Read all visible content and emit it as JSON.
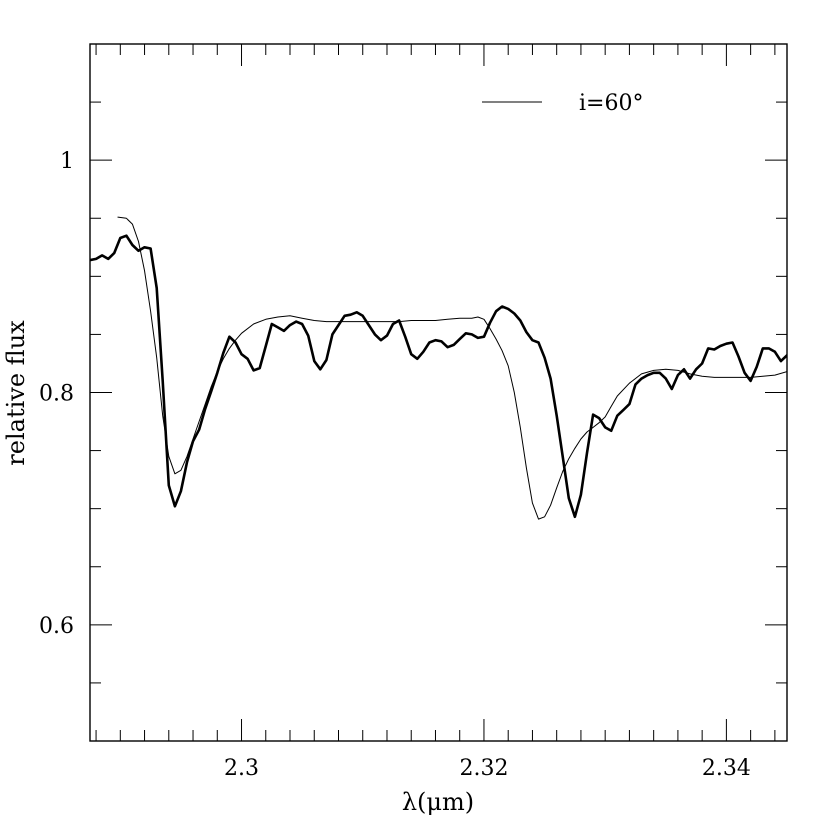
{
  "chart_data": {
    "type": "line",
    "title": "",
    "xlabel": "λ(μm)",
    "ylabel": "relative flux",
    "xlim": [
      2.2875,
      2.345
    ],
    "ylim": [
      0.5,
      1.1
    ],
    "x_ticks": [
      2.3,
      2.32,
      2.34
    ],
    "x_tick_labels": [
      "2.3",
      "2.32",
      "2.34"
    ],
    "x_minor_step": 0.002,
    "y_ticks": [
      0.6,
      0.8,
      1.0
    ],
    "y_tick_labels": [
      "0.6",
      "0.8",
      "1"
    ],
    "y_minor_step": 0.05,
    "grid": false,
    "legend": {
      "position": "top-right",
      "entries": [
        "i=60°"
      ]
    },
    "series": [
      {
        "style": "thick",
        "x": [
          2.2875,
          2.288,
          2.2885,
          2.289,
          2.2895,
          2.29,
          2.2905,
          2.291,
          2.2915,
          2.292,
          2.2925,
          2.293,
          2.2935,
          2.294,
          2.2945,
          2.295,
          2.2955,
          2.296,
          2.2965,
          2.297,
          2.2975,
          2.298,
          2.2985,
          2.299,
          2.2995,
          2.3,
          2.3005,
          2.301,
          2.3015,
          2.302,
          2.3025,
          2.303,
          2.3035,
          2.304,
          2.3045,
          2.305,
          2.3055,
          2.306,
          2.3065,
          2.307,
          2.3075,
          2.308,
          2.3085,
          2.309,
          2.3095,
          2.31,
          2.3105,
          2.311,
          2.3115,
          2.312,
          2.3125,
          2.313,
          2.3135,
          2.314,
          2.3145,
          2.315,
          2.3155,
          2.316,
          2.3165,
          2.317,
          2.3175,
          2.318,
          2.3185,
          2.319,
          2.3195,
          2.32,
          2.3205,
          2.321,
          2.3215,
          2.322,
          2.3225,
          2.323,
          2.3235,
          2.324,
          2.3245,
          2.325,
          2.3255,
          2.326,
          2.3265,
          2.327,
          2.3275,
          2.328,
          2.3285,
          2.329,
          2.3295,
          2.33,
          2.3305,
          2.331,
          2.3315,
          2.332,
          2.3325,
          2.333,
          2.3335,
          2.334,
          2.3345,
          2.335,
          2.3355,
          2.336,
          2.3365,
          2.337,
          2.3375,
          2.338,
          2.3385,
          2.339,
          2.3395,
          2.34,
          2.3405,
          2.341,
          2.3415,
          2.342,
          2.3425,
          2.343,
          2.3435,
          2.344,
          2.3445,
          2.345
        ],
        "y": [
          0.914,
          0.915,
          0.918,
          0.915,
          0.92,
          0.933,
          0.935,
          0.927,
          0.922,
          0.925,
          0.924,
          0.89,
          0.81,
          0.72,
          0.702,
          0.715,
          0.74,
          0.758,
          0.768,
          0.786,
          0.801,
          0.817,
          0.834,
          0.848,
          0.843,
          0.833,
          0.829,
          0.819,
          0.821,
          0.84,
          0.859,
          0.856,
          0.853,
          0.858,
          0.861,
          0.859,
          0.849,
          0.827,
          0.82,
          0.828,
          0.85,
          0.858,
          0.866,
          0.867,
          0.869,
          0.866,
          0.858,
          0.85,
          0.845,
          0.849,
          0.859,
          0.862,
          0.848,
          0.833,
          0.829,
          0.835,
          0.843,
          0.845,
          0.844,
          0.839,
          0.841,
          0.846,
          0.851,
          0.85,
          0.847,
          0.848,
          0.86,
          0.87,
          0.874,
          0.872,
          0.868,
          0.862,
          0.852,
          0.845,
          0.843,
          0.83,
          0.812,
          0.78,
          0.745,
          0.709,
          0.693,
          0.712,
          0.748,
          0.781,
          0.778,
          0.77,
          0.767,
          0.78,
          0.785,
          0.79,
          0.807,
          0.812,
          0.815,
          0.817,
          0.817,
          0.812,
          0.803,
          0.815,
          0.82,
          0.812,
          0.82,
          0.825,
          0.838,
          0.837,
          0.84,
          0.842,
          0.843,
          0.831,
          0.817,
          0.81,
          0.822,
          0.838,
          0.838,
          0.835,
          0.827,
          0.832
        ]
      },
      {
        "style": "thin",
        "name": "i=60°",
        "x": [
          2.2898,
          2.2905,
          2.291,
          2.2915,
          2.292,
          2.2925,
          2.293,
          2.2935,
          2.294,
          2.2945,
          2.295,
          2.2955,
          2.296,
          2.2965,
          2.297,
          2.2975,
          2.298,
          2.2985,
          2.299,
          2.2995,
          2.3,
          2.301,
          2.302,
          2.303,
          2.304,
          2.305,
          2.306,
          2.307,
          2.308,
          2.309,
          2.31,
          2.311,
          2.312,
          2.313,
          2.314,
          2.315,
          2.316,
          2.317,
          2.318,
          2.319,
          2.3195,
          2.32,
          2.3205,
          2.321,
          2.3215,
          2.322,
          2.3225,
          2.323,
          2.3235,
          2.324,
          2.3245,
          2.325,
          2.3255,
          2.326,
          2.3265,
          2.327,
          2.3275,
          2.328,
          2.3285,
          2.329,
          2.3295,
          2.33,
          2.3305,
          2.331,
          2.332,
          2.333,
          2.334,
          2.335,
          2.336,
          2.337,
          2.338,
          2.339,
          2.34,
          2.341,
          2.342,
          2.343,
          2.344,
          2.345
        ],
        "y": [
          0.951,
          0.95,
          0.945,
          0.93,
          0.905,
          0.87,
          0.83,
          0.78,
          0.745,
          0.73,
          0.733,
          0.745,
          0.76,
          0.775,
          0.79,
          0.805,
          0.818,
          0.829,
          0.838,
          0.845,
          0.851,
          0.859,
          0.863,
          0.865,
          0.866,
          0.864,
          0.862,
          0.861,
          0.861,
          0.861,
          0.861,
          0.861,
          0.861,
          0.861,
          0.862,
          0.862,
          0.862,
          0.863,
          0.864,
          0.864,
          0.865,
          0.863,
          0.855,
          0.846,
          0.836,
          0.823,
          0.8,
          0.77,
          0.735,
          0.705,
          0.691,
          0.693,
          0.703,
          0.718,
          0.732,
          0.743,
          0.752,
          0.76,
          0.766,
          0.77,
          0.774,
          0.779,
          0.788,
          0.797,
          0.808,
          0.816,
          0.819,
          0.82,
          0.819,
          0.816,
          0.814,
          0.813,
          0.813,
          0.813,
          0.813,
          0.814,
          0.815,
          0.818
        ]
      }
    ]
  }
}
